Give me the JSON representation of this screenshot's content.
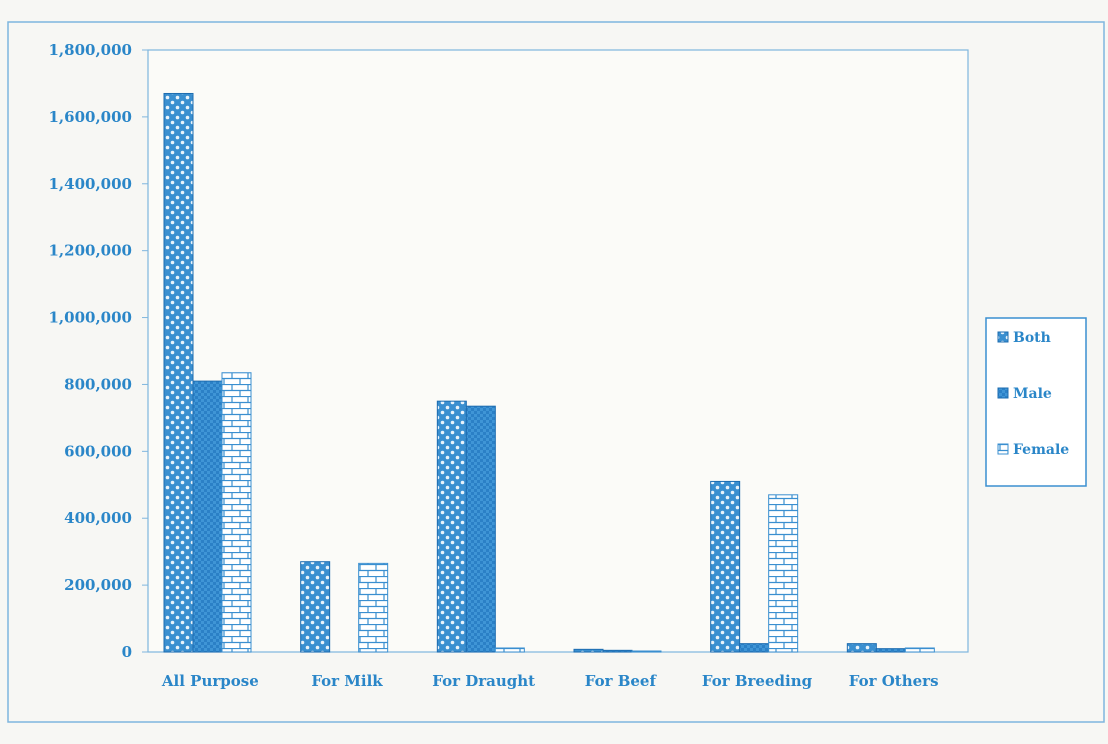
{
  "chart_data": {
    "type": "bar",
    "title": "",
    "xlabel": "",
    "ylabel": "",
    "categories": [
      "All Purpose",
      "For Milk",
      "For Draught",
      "For Beef",
      "For Breeding",
      "For Others"
    ],
    "series": [
      {
        "name": "Both",
        "values": [
          1670000,
          270000,
          750000,
          8000,
          510000,
          25000
        ]
      },
      {
        "name": "Male",
        "values": [
          810000,
          0,
          735000,
          5000,
          25000,
          10000
        ]
      },
      {
        "name": "Female",
        "values": [
          835000,
          265000,
          12000,
          3000,
          470000,
          12000
        ]
      }
    ],
    "ylim": [
      0,
      1800000
    ],
    "yticks": [
      "0",
      "200,000",
      "400,000",
      "600,000",
      "800,000",
      "1,000,000",
      "1,200,000",
      "1,400,000",
      "1,600,000",
      "1,800,000"
    ],
    "legend": {
      "position": "right",
      "entries": [
        "Both",
        "Male",
        "Female"
      ]
    },
    "grid": false,
    "colors": {
      "primary": "#3a8fd0",
      "dark": "#1d6cb0",
      "axis_text": "#2a86c8"
    }
  }
}
